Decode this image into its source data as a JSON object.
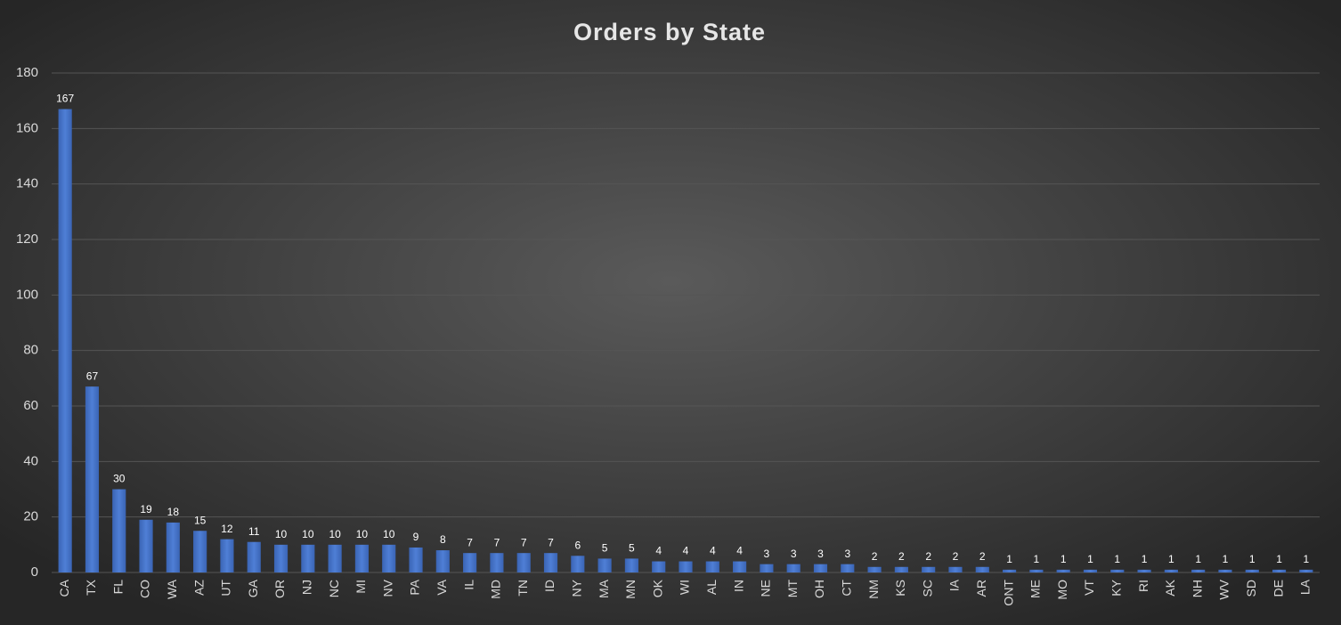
{
  "chart_data": {
    "type": "bar",
    "title": "Orders by State",
    "categories": [
      "CA",
      "TX",
      "FL",
      "CO",
      "WA",
      "AZ",
      "UT",
      "GA",
      "OR",
      "NJ",
      "NC",
      "MI",
      "NV",
      "PA",
      "VA",
      "IL",
      "MD",
      "TN",
      "ID",
      "NY",
      "MA",
      "MN",
      "OK",
      "WI",
      "AL",
      "IN",
      "NE",
      "MT",
      "OH",
      "CT",
      "NM",
      "KS",
      "SC",
      "IA",
      "AR",
      "ONT",
      "ME",
      "MO",
      "VT",
      "KY",
      "RI",
      "AK",
      "NH",
      "WV",
      "SD",
      "DE",
      "LA"
    ],
    "values": [
      167,
      67,
      30,
      19,
      18,
      15,
      12,
      11,
      10,
      10,
      10,
      10,
      10,
      9,
      8,
      7,
      7,
      7,
      7,
      6,
      5,
      5,
      4,
      4,
      4,
      4,
      3,
      3,
      3,
      3,
      2,
      2,
      2,
      2,
      2,
      1,
      1,
      1,
      1,
      1,
      1,
      1,
      1,
      1,
      1,
      1,
      1
    ],
    "color": "#4472c4",
    "ylim": [
      0,
      180
    ],
    "yticks": [
      0,
      20,
      40,
      60,
      80,
      100,
      120,
      140,
      160,
      180
    ],
    "grid": true
  }
}
